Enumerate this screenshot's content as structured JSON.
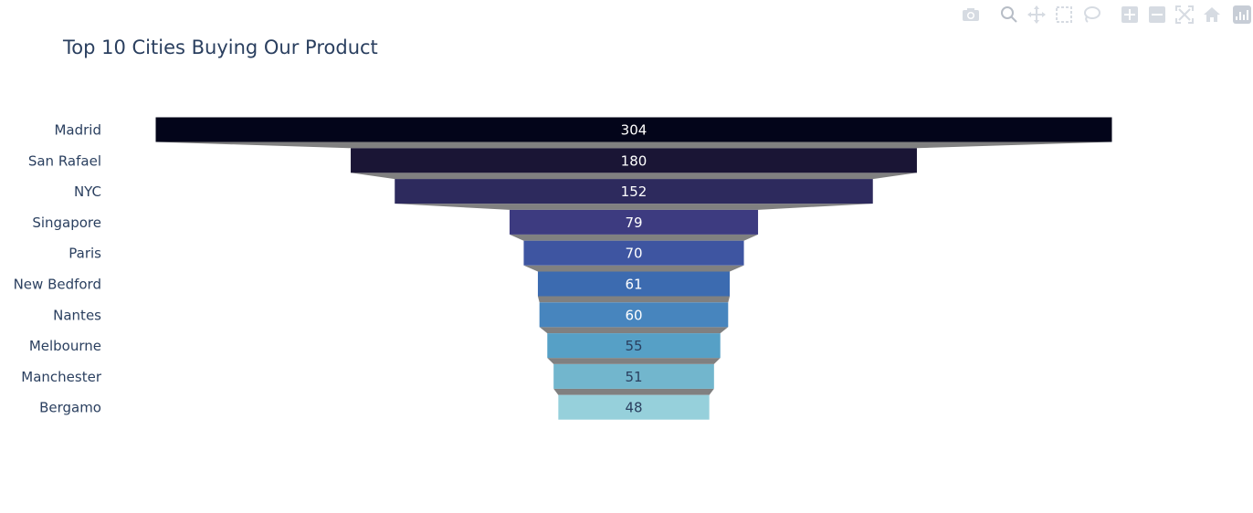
{
  "chart_data": {
    "type": "funnel",
    "title": "Top 10 Cities Buying Our Product",
    "categories": [
      "Madrid",
      "San Rafael",
      "NYC",
      "Singapore",
      "Paris",
      "New Bedford",
      "Nantes",
      "Melbourne",
      "Manchester",
      "Bergamo"
    ],
    "values": [
      304,
      180,
      152,
      79,
      70,
      61,
      60,
      55,
      51,
      48
    ],
    "colors": [
      "#03051a",
      "#1a1535",
      "#2d2a5d",
      "#3d3b80",
      "#3e55a1",
      "#3c6bb0",
      "#4785be",
      "#56a0c6",
      "#72b6cd",
      "#96d0db"
    ],
    "label_colors": [
      "#ffffff",
      "#ffffff",
      "#ffffff",
      "#ffffff",
      "#ffffff",
      "#ffffff",
      "#ffffff",
      "#2a3f5f",
      "#2a3f5f",
      "#2a3f5f"
    ],
    "connector_color": "#808080"
  },
  "modebar": {
    "buttons": [
      "camera-icon",
      "zoom-icon",
      "pan-icon",
      "box-select-icon",
      "lasso-select-icon",
      "zoom-in-icon",
      "zoom-out-icon",
      "autoscale-icon",
      "reset-axes-icon"
    ]
  }
}
